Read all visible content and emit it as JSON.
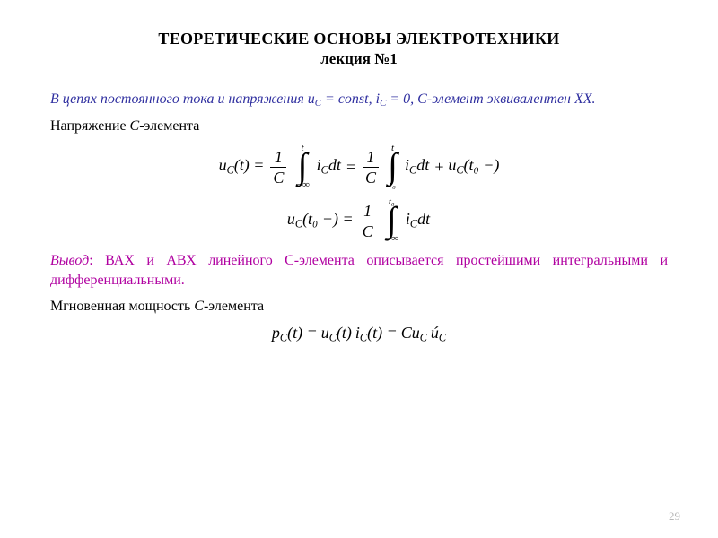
{
  "colors": {
    "background": "#ffffff",
    "text": "#000000",
    "blue": "#3030a0",
    "magenta": "#b000a0",
    "page_num": "#b7b7b7"
  },
  "typography": {
    "title_fontsize": 18,
    "subtitle_fontsize": 17,
    "body_fontsize": 16,
    "math_fontsize": 18,
    "integral_symbol_fontsize": 40,
    "page_num_fontsize": 13,
    "font_family": "Georgia / Times-like serif"
  },
  "title": {
    "line1": "ТЕОРЕТИЧЕСКИЕ ОСНОВЫ ЭЛЕКТРОТЕХНИКИ",
    "line2": "лекция №1"
  },
  "blue_paragraph": {
    "prefix": "В цепях постоянного тока и напряжения ",
    "expr1": "u",
    "expr1_sub": "C",
    "eq1": " = const, ",
    "expr2": "i",
    "expr2_sub": "C",
    "eq2": " = 0, ",
    "suffix": "C-элемент эквивалентен ХХ."
  },
  "line_voltage_label": {
    "before": "Напряжение ",
    "c": "C",
    "after": "-элемента"
  },
  "equation1": {
    "lhs_u": "u",
    "lhs_sub": "C",
    "lhs_arg": "(t) = ",
    "frac_num": "1",
    "frac_den": "C",
    "int1_upper": "t",
    "int1_lower": "−∞",
    "integrand1_i": "i",
    "integrand1_sub": "C",
    "integrand1_dt": "dt",
    "eq": " = ",
    "int2_upper": "t",
    "int2_lower": "t₀",
    "integrand2_i": "i",
    "integrand2_sub": "C",
    "integrand2_dt": "dt",
    "plus": " + ",
    "tail_u": "u",
    "tail_sub": "C",
    "tail_arg": "(t₀ −)"
  },
  "equation2": {
    "lhs_u": "u",
    "lhs_sub": "C",
    "lhs_arg": "(t₀ −) = ",
    "frac_num": "1",
    "frac_den": "C",
    "int_upper": "t₀",
    "int_lower": "−∞",
    "integrand_i": "i",
    "integrand_sub": "C",
    "integrand_dt": "dt"
  },
  "conclusion": {
    "lead": "Вывод",
    "rest": ": ВАХ и АВХ линейного C-элемента описывается простейшими интегральными и дифференциальными."
  },
  "line_power_label": {
    "before": "Мгновенная мощность ",
    "c": "C",
    "after": "-элемента"
  },
  "equation3": {
    "p": "p",
    "p_sub": "C",
    "p_arg": "(t) = ",
    "u": "u",
    "u_sub": "C",
    "u_arg": "(t)",
    "i": "i",
    "i_sub": "C",
    "i_arg": "(t) = ",
    "Cu": "Cu",
    "Cu_sub": "C",
    "udot": "ú",
    "udot_sub": "C"
  },
  "page_number": "29"
}
